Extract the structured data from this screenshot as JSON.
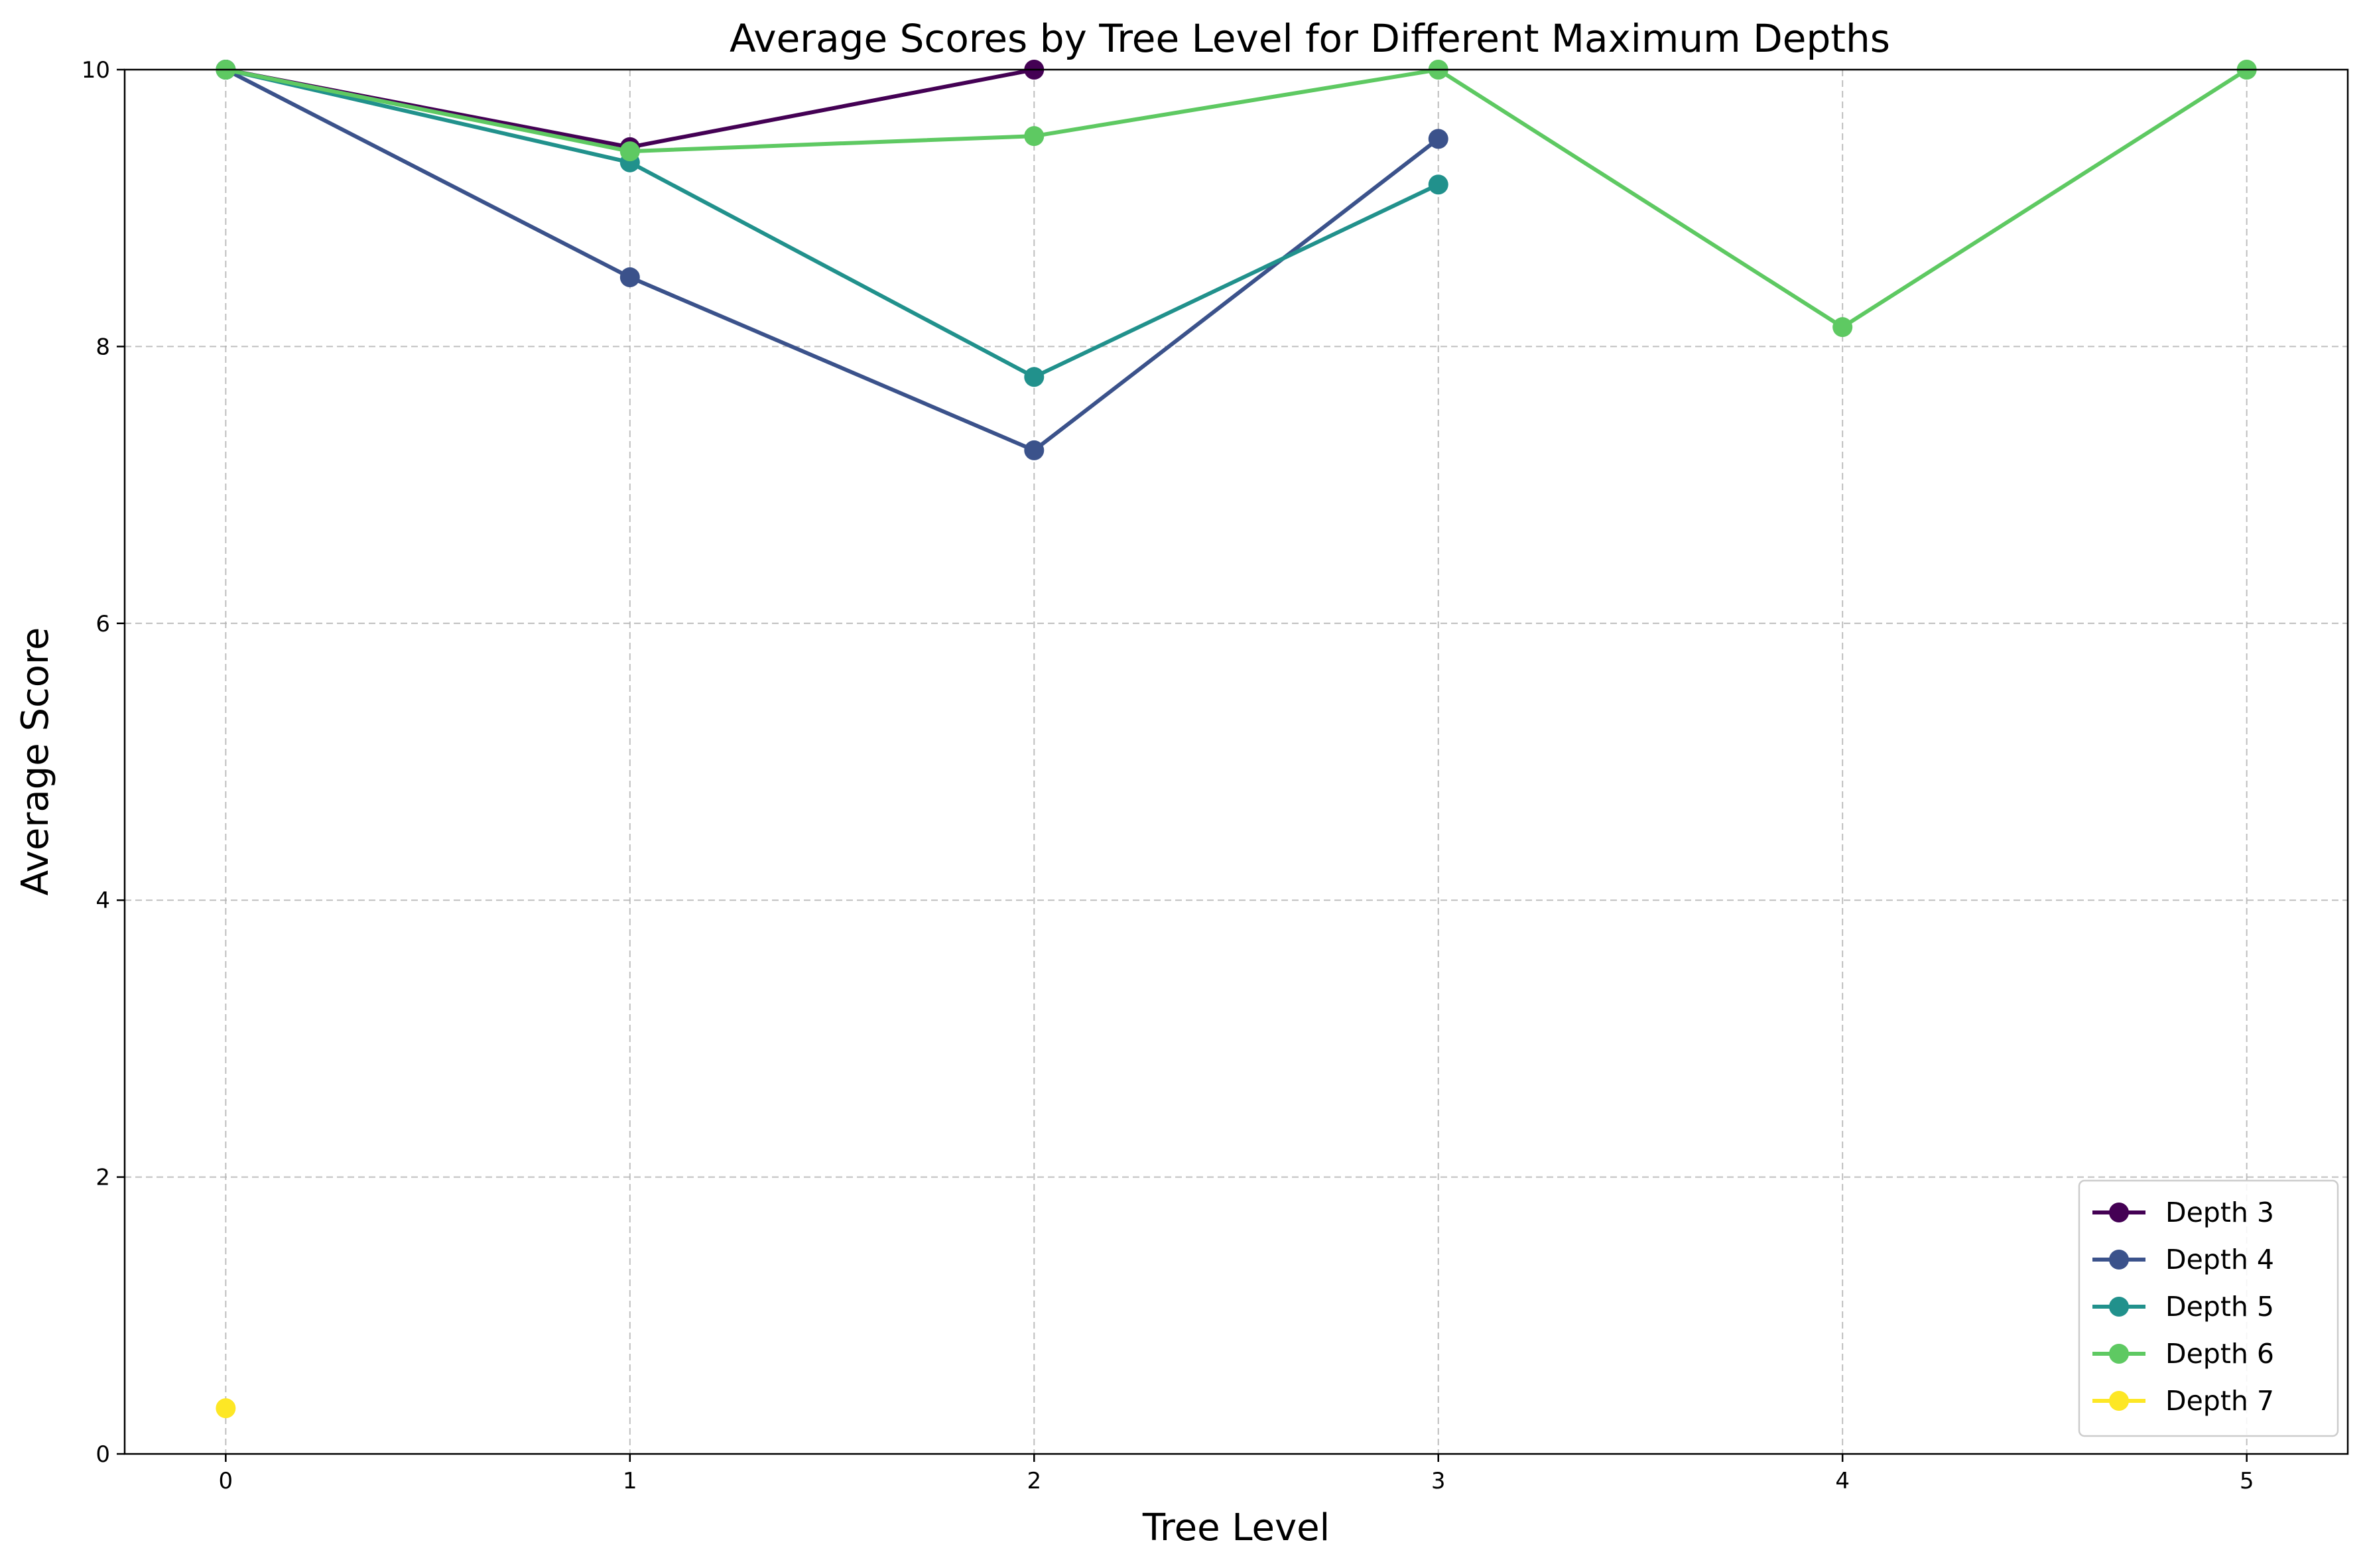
{
  "chart_data": {
    "type": "line",
    "title": "Average Scores by Tree Level for Different Maximum Depths",
    "xlabel": "Tree Level",
    "ylabel": "Average Score",
    "xlim": [
      -0.25,
      5.25
    ],
    "ylim": [
      0,
      10
    ],
    "xticks": [
      "0",
      "1",
      "2",
      "3",
      "4",
      "5"
    ],
    "yticks": [
      "0",
      "2",
      "4",
      "6",
      "8",
      "10"
    ],
    "grid": true,
    "legend_position": "lower-right",
    "series": [
      {
        "name": "Depth 3",
        "color": "#440154",
        "x": [
          0,
          1,
          2
        ],
        "y": [
          10.0,
          9.44,
          10.0
        ]
      },
      {
        "name": "Depth 4",
        "color": "#3b528b",
        "x": [
          0,
          1,
          2,
          3
        ],
        "y": [
          10.0,
          8.5,
          7.25,
          9.5
        ]
      },
      {
        "name": "Depth 5",
        "color": "#21918c",
        "x": [
          0,
          1,
          2,
          3
        ],
        "y": [
          10.0,
          9.33,
          7.78,
          9.17
        ]
      },
      {
        "name": "Depth 6",
        "color": "#5ec962",
        "x": [
          0,
          1,
          2,
          3,
          4,
          5
        ],
        "y": [
          10.0,
          9.41,
          9.52,
          10.0,
          8.14,
          10.0
        ]
      },
      {
        "name": "Depth 7",
        "color": "#fde725",
        "x": [
          0
        ],
        "y": [
          0.33
        ]
      }
    ]
  }
}
